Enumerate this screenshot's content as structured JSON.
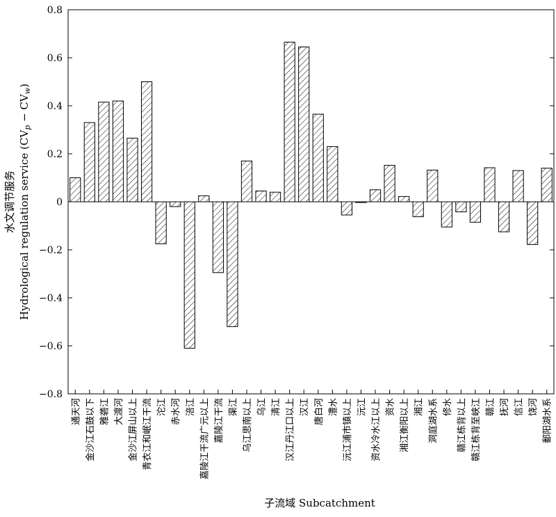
{
  "chart_data": {
    "type": "bar",
    "title": "",
    "xlabel": "子流域 Subcatchment",
    "ylabel_cn": "水文调节服务",
    "ylabel_en": "Hydrological regulation service (CV",
    "ylabel_sub_p": "p",
    "ylabel_minus": " − CV",
    "ylabel_sub_w": "w",
    "ylabel_close": ")",
    "ylim": [
      -0.8,
      0.8
    ],
    "yticks": [
      -0.8,
      -0.6,
      -0.4,
      -0.2,
      0,
      0.2,
      0.4,
      0.6,
      0.8
    ],
    "ytick_labels": [
      "−0.8",
      "−0.6",
      "−0.4",
      "−0.2",
      "0",
      "0.2",
      "0.4",
      "0.6",
      "0.8"
    ],
    "grid": false,
    "bar_style": "hatched",
    "categories": [
      "通天河",
      "金沙江石鼓以下",
      "雅砻江",
      "大渡河",
      "金沙江屏山以上",
      "青衣江和岷江干流",
      "沱江",
      "赤水河",
      "涪江",
      "嘉陵江干流广元以上",
      "嘉陵江干流",
      "渠江",
      "乌江思南以上",
      "乌江",
      "清江",
      "汉江丹江口以上",
      "汉江",
      "唐白河",
      "澧水",
      "沅江浦市镇以上",
      "沅江",
      "资水冷水江以上",
      "资水",
      "湘江衡阳以上",
      "湘江",
      "洞庭湖水系",
      "修水",
      "赣江栋背以上",
      "赣江栋背至峡江",
      "赣江",
      "抚河",
      "信江",
      "饶河",
      "鄱阳湖水系"
    ],
    "values": [
      0.1,
      0.33,
      0.415,
      0.42,
      0.265,
      0.5,
      -0.175,
      -0.02,
      -0.61,
      0.025,
      -0.295,
      -0.52,
      0.17,
      0.045,
      0.04,
      0.665,
      0.645,
      0.365,
      0.23,
      -0.055,
      -0.003,
      0.05,
      0.152,
      0.022,
      -0.062,
      0.132,
      -0.105,
      -0.042,
      -0.085,
      0.142,
      -0.125,
      0.13,
      -0.178,
      0.14
    ]
  }
}
